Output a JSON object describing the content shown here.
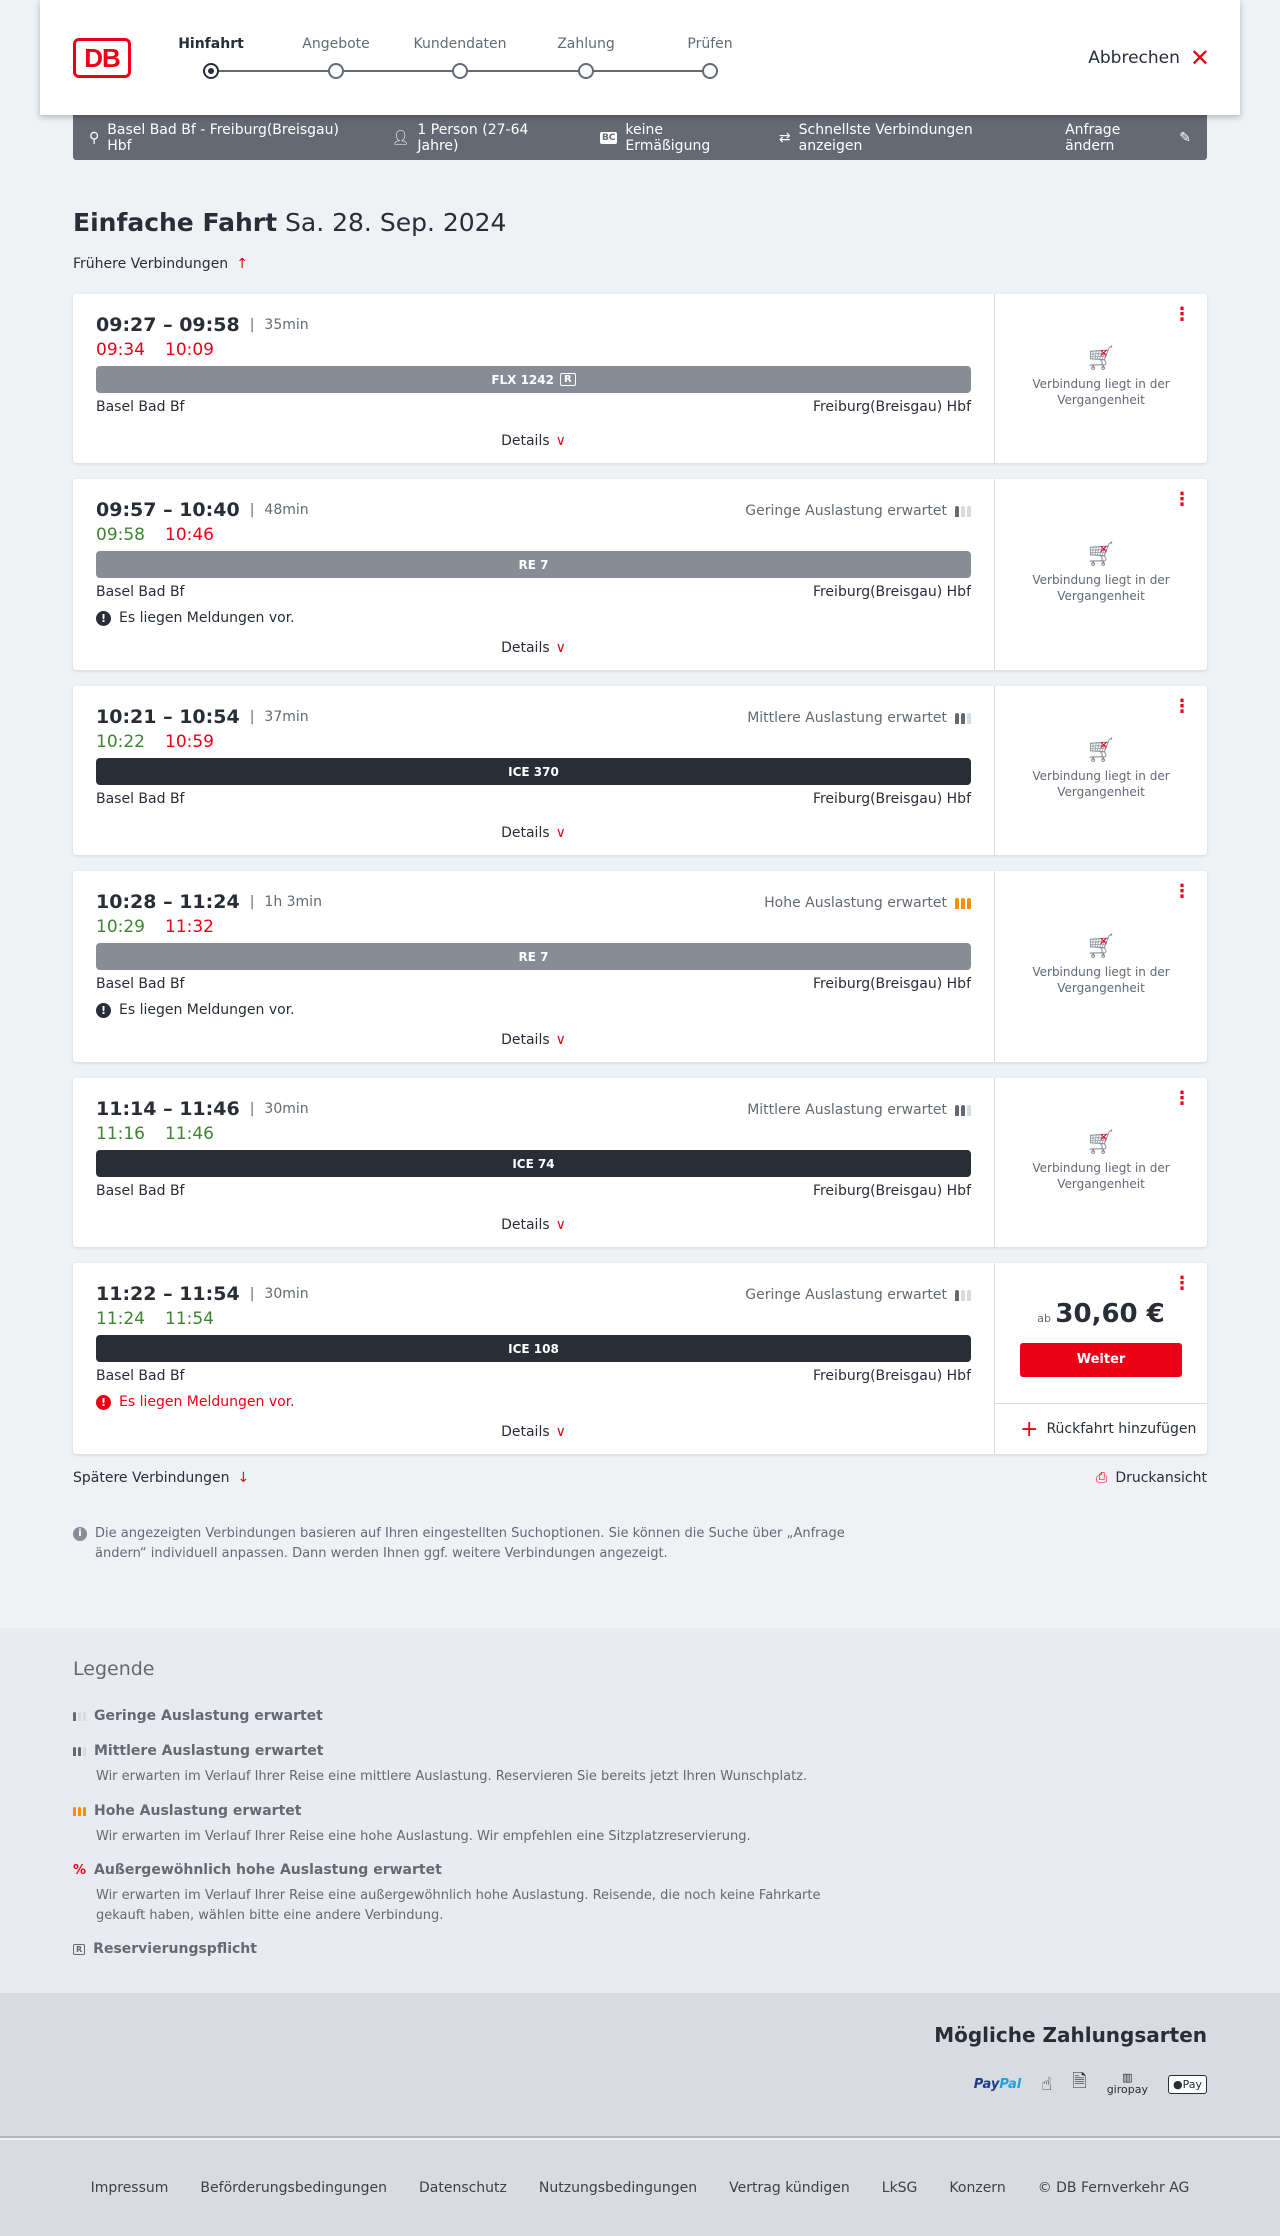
{
  "header": {
    "logo": "DB",
    "steps": [
      "Hinfahrt",
      "Angebote",
      "Kundendaten",
      "Zahlung",
      "Prüfen"
    ],
    "active_step": 0,
    "cancel": "Abbrechen"
  },
  "search": {
    "route": "Basel Bad Bf - Freiburg(Breisgau) Hbf",
    "persons": "1 Person (27-64 Jahre)",
    "bc_badge": "BC",
    "discount": "keine Ermäßigung",
    "fastest": "Schnellste Verbindungen anzeigen",
    "edit": "Anfrage ändern"
  },
  "title": {
    "main": "Einfache Fahrt",
    "date": "Sa. 28. Sep. 2024"
  },
  "earlier": "Frühere Verbindungen",
  "later": "Spätere Verbindungen",
  "print": "Druckansicht",
  "details_label": "Details",
  "past_label": "Verbindung liegt in der Vergangenheit",
  "connections": [
    {
      "times": "09:27 – 09:58",
      "duration": "35min",
      "rt_dep": "09:34",
      "rt_arr": "10:09",
      "train": "FLX 1242",
      "reservation": "R",
      "from": "Basel Bad Bf",
      "to": "Freiburg(Breisgau) Hbf"
    },
    {
      "times": "09:57 – 10:40",
      "duration": "48min",
      "rt_dep": "09:58",
      "rt_arr": "10:46",
      "load": "Geringe Auslastung erwartet",
      "train": "RE 7",
      "from": "Basel Bad Bf",
      "to": "Freiburg(Breisgau) Hbf",
      "message": "Es liegen Meldungen vor."
    },
    {
      "times": "10:21 – 10:54",
      "duration": "37min",
      "rt_dep": "10:22",
      "rt_arr": "10:59",
      "load": "Mittlere Auslastung erwartet",
      "train": "ICE 370",
      "from": "Basel Bad Bf",
      "to": "Freiburg(Breisgau) Hbf"
    },
    {
      "times": "10:28 – 11:24",
      "duration": "1h 3min",
      "rt_dep": "10:29",
      "rt_arr": "11:32",
      "load": "Hohe Auslastung erwartet",
      "train": "RE 7",
      "from": "Basel Bad Bf",
      "to": "Freiburg(Breisgau) Hbf",
      "message": "Es liegen Meldungen vor."
    },
    {
      "times": "11:14 – 11:46",
      "duration": "30min",
      "rt_dep": "11:16",
      "rt_arr": "11:46",
      "load": "Mittlere Auslastung erwartet",
      "train": "ICE 74",
      "from": "Basel Bad Bf",
      "to": "Freiburg(Breisgau) Hbf"
    },
    {
      "times": "11:22 – 11:54",
      "duration": "30min",
      "rt_dep": "11:24",
      "rt_arr": "11:54",
      "load": "Geringe Auslastung erwartet",
      "train": "ICE 108",
      "from": "Basel Bad Bf",
      "to": "Freiburg(Breisgau) Hbf",
      "message": "Es liegen Meldungen vor.",
      "price_prefix": "ab",
      "price": "30,60 €",
      "continue": "Weiter",
      "add_return": "Rückfahrt hinzufügen"
    }
  ],
  "info": "Die angezeigten Verbindungen basieren auf Ihren eingestellten Suchoptionen. Sie können die Suche über „Anfrage ändern“ individuell anpassen. Dann werden Ihnen ggf. weitere Verbindungen angezeigt.",
  "legend": {
    "title": "Legende",
    "items": [
      {
        "title": "Geringe Auslastung erwartet"
      },
      {
        "title": "Mittlere Auslastung erwartet",
        "desc": "Wir erwarten im Verlauf Ihrer Reise eine mittlere Auslastung. Reservieren Sie bereits jetzt Ihren Wunschplatz."
      },
      {
        "title": "Hohe Auslastung erwartet",
        "desc": "Wir erwarten im Verlauf Ihrer Reise eine hohe Auslastung. Wir empfehlen eine Sitzplatzreservierung."
      },
      {
        "title": "Außergewöhnlich hohe Auslastung erwartet",
        "desc": "Wir erwarten im Verlauf Ihrer Reise eine außergewöhnlich hohe Auslastung. Reisende, die noch keine Fahrkarte gekauft haben, wählen bitte eine andere Verbindung."
      },
      {
        "title": "Reservierungspflicht"
      }
    ]
  },
  "payment": {
    "title": "Mögliche Zahlungsarten",
    "paypal_a": "Pay",
    "paypal_b": "Pal",
    "giropay": "giropay",
    "applepay": "Pay"
  },
  "footer": [
    "Impressum",
    "Beförderungsbedingungen",
    "Datenschutz",
    "Nutzungsbedingungen",
    "Vertrag kündigen",
    "LkSG",
    "Konzern",
    "© DB Fernverkehr AG"
  ],
  "colors": {
    "brand": "#ec0016",
    "on_time": "#408335",
    "high_load": "#f39200"
  }
}
